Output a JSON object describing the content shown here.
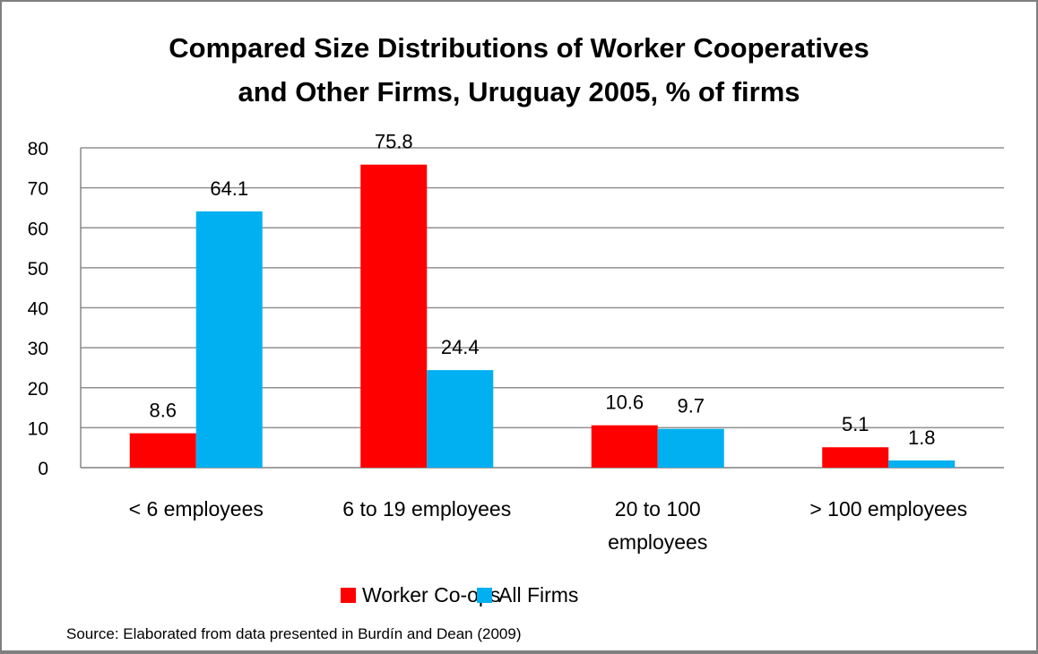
{
  "chart_data": {
    "type": "bar",
    "title_lines": [
      "Compared Size Distributions of Worker Cooperatives",
      "and Other Firms, Uruguay 2005, % of firms"
    ],
    "categories": [
      "< 6 employees",
      "6 to 19 employees",
      "20 to 100 employees",
      "> 100 employees"
    ],
    "category_lines": [
      [
        "< 6 employees"
      ],
      [
        "6 to 19 employees"
      ],
      [
        "20 to 100",
        "employees"
      ],
      [
        "> 100 employees"
      ]
    ],
    "series": [
      {
        "name": "Worker Co-ops",
        "color": "#ff0000",
        "values": [
          8.6,
          75.8,
          10.6,
          5.1
        ],
        "labels": [
          "8.6",
          "75.8",
          "10.6",
          "5.1"
        ]
      },
      {
        "name": "All Firms",
        "color": "#00b0f0",
        "values": [
          64.1,
          24.4,
          9.7,
          1.8
        ],
        "labels": [
          "64.1",
          "24.4",
          "9.7",
          "1.8"
        ]
      }
    ],
    "yticks": [
      "0",
      "10",
      "20",
      "30",
      "40",
      "50",
      "60",
      "70",
      "80"
    ],
    "ylim": [
      0,
      80
    ],
    "grid": true,
    "legend_position": "bottom",
    "source": "Source: Elaborated from data  presented in Burdín and Dean (2009)"
  }
}
